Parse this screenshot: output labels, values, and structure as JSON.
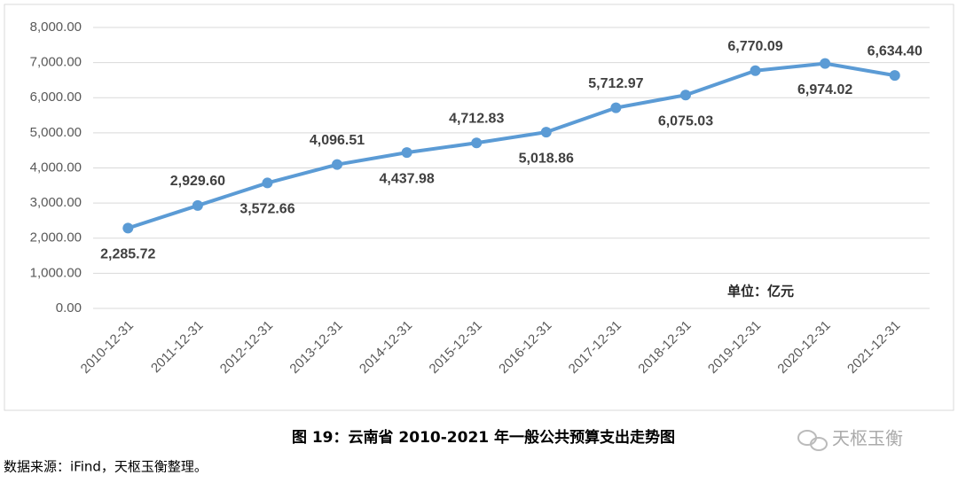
{
  "chart_data": {
    "type": "line",
    "categories": [
      "2010-12-31",
      "2011-12-31",
      "2012-12-31",
      "2013-12-31",
      "2014-12-31",
      "2015-12-31",
      "2016-12-31",
      "2017-12-31",
      "2018-12-31",
      "2019-12-31",
      "2020-12-31",
      "2021-12-31"
    ],
    "values": [
      2285.72,
      2929.6,
      3572.66,
      4096.51,
      4437.98,
      4712.83,
      5018.86,
      5712.97,
      6075.03,
      6770.09,
      6974.02,
      6634.4
    ],
    "value_labels": [
      "2,285.72",
      "2,929.60",
      "3,572.66",
      "4,096.51",
      "4,437.98",
      "4,712.83",
      "5,018.86",
      "5,712.97",
      "6,075.03",
      "6,770.09",
      "6,974.02",
      "6,634.40"
    ],
    "color": "#5b9bd5",
    "ylim": [
      0,
      8000
    ],
    "yticks": [
      {
        "value": 0,
        "label": "0.00"
      },
      {
        "value": 1000,
        "label": "1,000.00"
      },
      {
        "value": 2000,
        "label": "2,000.00"
      },
      {
        "value": 3000,
        "label": "3,000.00"
      },
      {
        "value": 4000,
        "label": "4,000.00"
      },
      {
        "value": 5000,
        "label": "5,000.00"
      },
      {
        "value": 6000,
        "label": "6,000.00"
      },
      {
        "value": 7000,
        "label": "7,000.00"
      },
      {
        "value": 8000,
        "label": "8,000.00"
      }
    ],
    "grid": true,
    "annotation": "单位：亿元",
    "caption": "图 19：云南省 2010-2021 年一般公共预算支出走势图",
    "source": "数据来源：iFind，天枢玉衡整理。",
    "watermark": "天枢玉衡"
  }
}
